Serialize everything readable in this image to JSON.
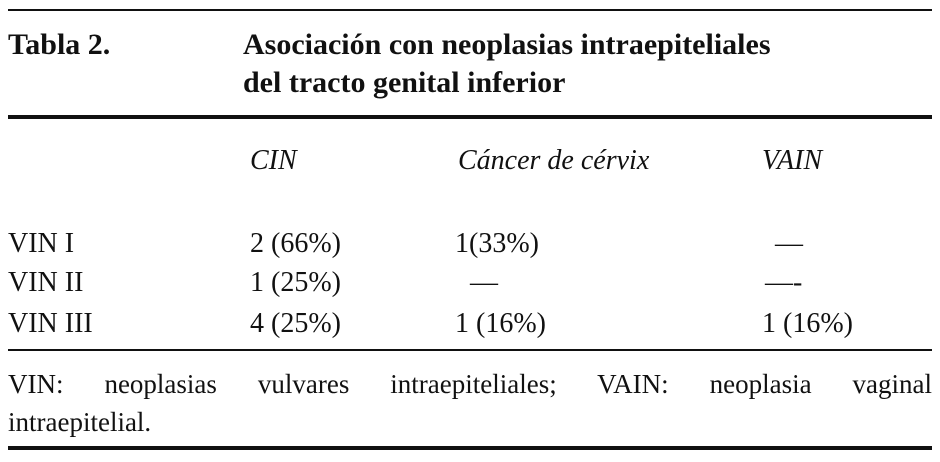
{
  "header": {
    "label": "Tabla 2.",
    "title_lines": [
      "Asociación con neoplasias intraepiteliales",
      "del tracto genital inferior"
    ]
  },
  "table": {
    "columns": [
      "CIN",
      "Cáncer de cérvix",
      "VAIN"
    ],
    "rows": [
      [
        "VIN I",
        "2 (66%)",
        "1(33%)",
        "—"
      ],
      [
        "VIN II",
        "1 (25%)",
        "—",
        "—-"
      ],
      [
        "VIN III",
        "4 (25%)",
        "1 (16%)",
        "1 (16%)"
      ]
    ]
  },
  "footnote_lines": [
    "VIN: neoplasias vulvares intraepiteliales; VAIN: neoplasia vaginal",
    "intraepitelial."
  ]
}
